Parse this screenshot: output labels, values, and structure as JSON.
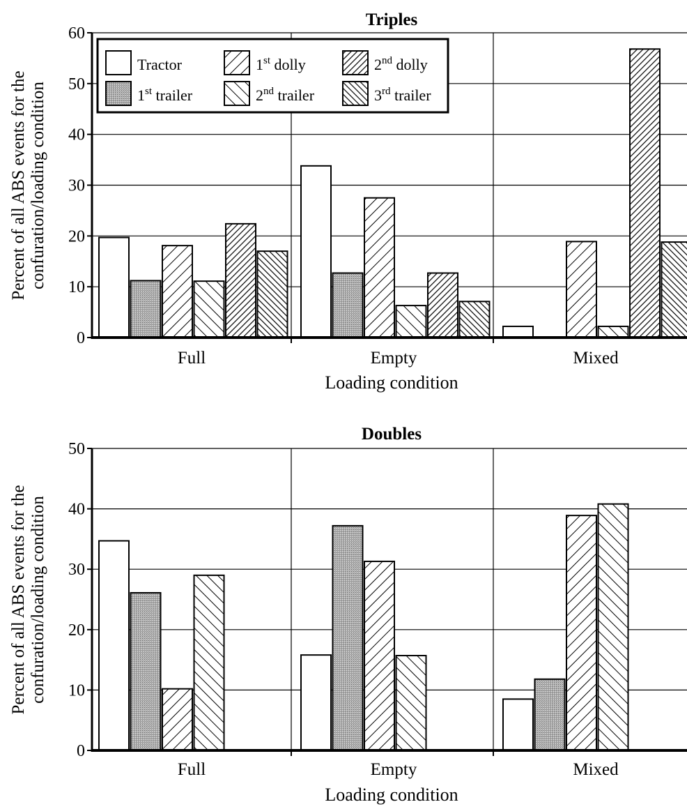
{
  "chart_data": [
    {
      "type": "bar",
      "title": "Triples",
      "xlabel": "Loading condition",
      "ylabel_lines": [
        "Percent of all ABS events for  the",
        "confuration/loading condition"
      ],
      "ylim": [
        0,
        60
      ],
      "yticks": [
        "0",
        "10",
        "20",
        "30",
        "40",
        "50",
        "60"
      ],
      "grid": true,
      "legend_position": "top-left",
      "categories": [
        "Full",
        "Empty",
        "Mixed"
      ],
      "series": [
        {
          "name": "Tractor",
          "name_base": "Tractor",
          "name_sup": "",
          "name_rest": "",
          "pattern": "white",
          "values": [
            19.7,
            33.8,
            2.2
          ]
        },
        {
          "name": "1st trailer",
          "name_base": "1",
          "name_sup": "st",
          "name_rest": " trailer",
          "pattern": "gray",
          "values": [
            11.2,
            12.7,
            0
          ]
        },
        {
          "name": "1st dolly",
          "name_base": "1",
          "name_sup": "st",
          "name_rest": " dolly",
          "pattern": "back-diag",
          "values": [
            18.1,
            27.5,
            18.9
          ]
        },
        {
          "name": "2nd trailer",
          "name_base": "2",
          "name_sup": "nd",
          "name_rest": " trailer",
          "pattern": "fwd-diag",
          "values": [
            11.1,
            6.3,
            2.2
          ]
        },
        {
          "name": "2nd dolly",
          "name_base": "2",
          "name_sup": "nd",
          "name_rest": " dolly",
          "pattern": "back-dense",
          "values": [
            22.4,
            12.7,
            56.8
          ]
        },
        {
          "name": "3rd trailer",
          "name_base": "3",
          "name_sup": "rd",
          "name_rest": " trailer",
          "pattern": "fwd-dense",
          "values": [
            17.0,
            7.1,
            18.8
          ]
        }
      ]
    },
    {
      "type": "bar",
      "title": "Doubles",
      "xlabel": "Loading condition",
      "ylabel_lines": [
        "Percent of all ABS events for  the",
        "confuration/loading condition"
      ],
      "ylim": [
        0,
        50
      ],
      "yticks": [
        "0",
        "10",
        "20",
        "30",
        "40",
        "50"
      ],
      "grid": true,
      "categories": [
        "Full",
        "Empty",
        "Mixed"
      ],
      "series": [
        {
          "pattern": "white",
          "values": [
            34.7,
            15.8,
            8.5
          ]
        },
        {
          "pattern": "gray",
          "values": [
            26.1,
            37.2,
            11.8
          ]
        },
        {
          "pattern": "back-diag",
          "values": [
            10.2,
            31.3,
            38.9
          ]
        },
        {
          "pattern": "fwd-diag",
          "values": [
            29.0,
            15.7,
            40.8
          ]
        }
      ]
    }
  ]
}
